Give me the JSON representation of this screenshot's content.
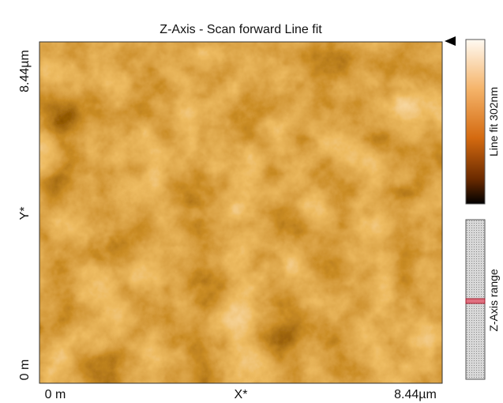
{
  "title": "Z-Axis - Scan forward   Line fit",
  "y_axis": {
    "top": "8.44µm",
    "label": "Y*",
    "bottom": "0 m"
  },
  "x_axis": {
    "left": "0 m",
    "label": "X*",
    "right": "8.44µm"
  },
  "colorbar": {
    "label": "Line fit 302nm"
  },
  "range_panel": {
    "label": "Z-Axis range"
  }
}
